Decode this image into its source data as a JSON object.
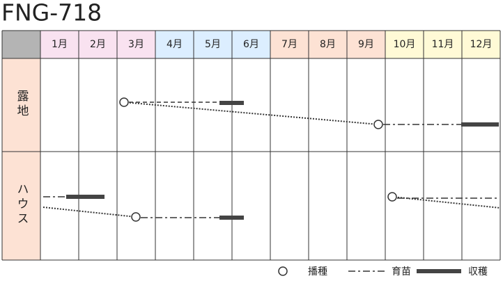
{
  "title": "FNG-718",
  "months": [
    "1月",
    "2月",
    "3月",
    "4月",
    "5月",
    "6月",
    "7月",
    "8月",
    "9月",
    "10月",
    "11月",
    "12月"
  ],
  "rows": [
    {
      "label": "露地"
    },
    {
      "label": "ハウス"
    }
  ],
  "legend": {
    "sowing": "播種",
    "seedling": "育苗",
    "harvest": "収穫"
  }
}
